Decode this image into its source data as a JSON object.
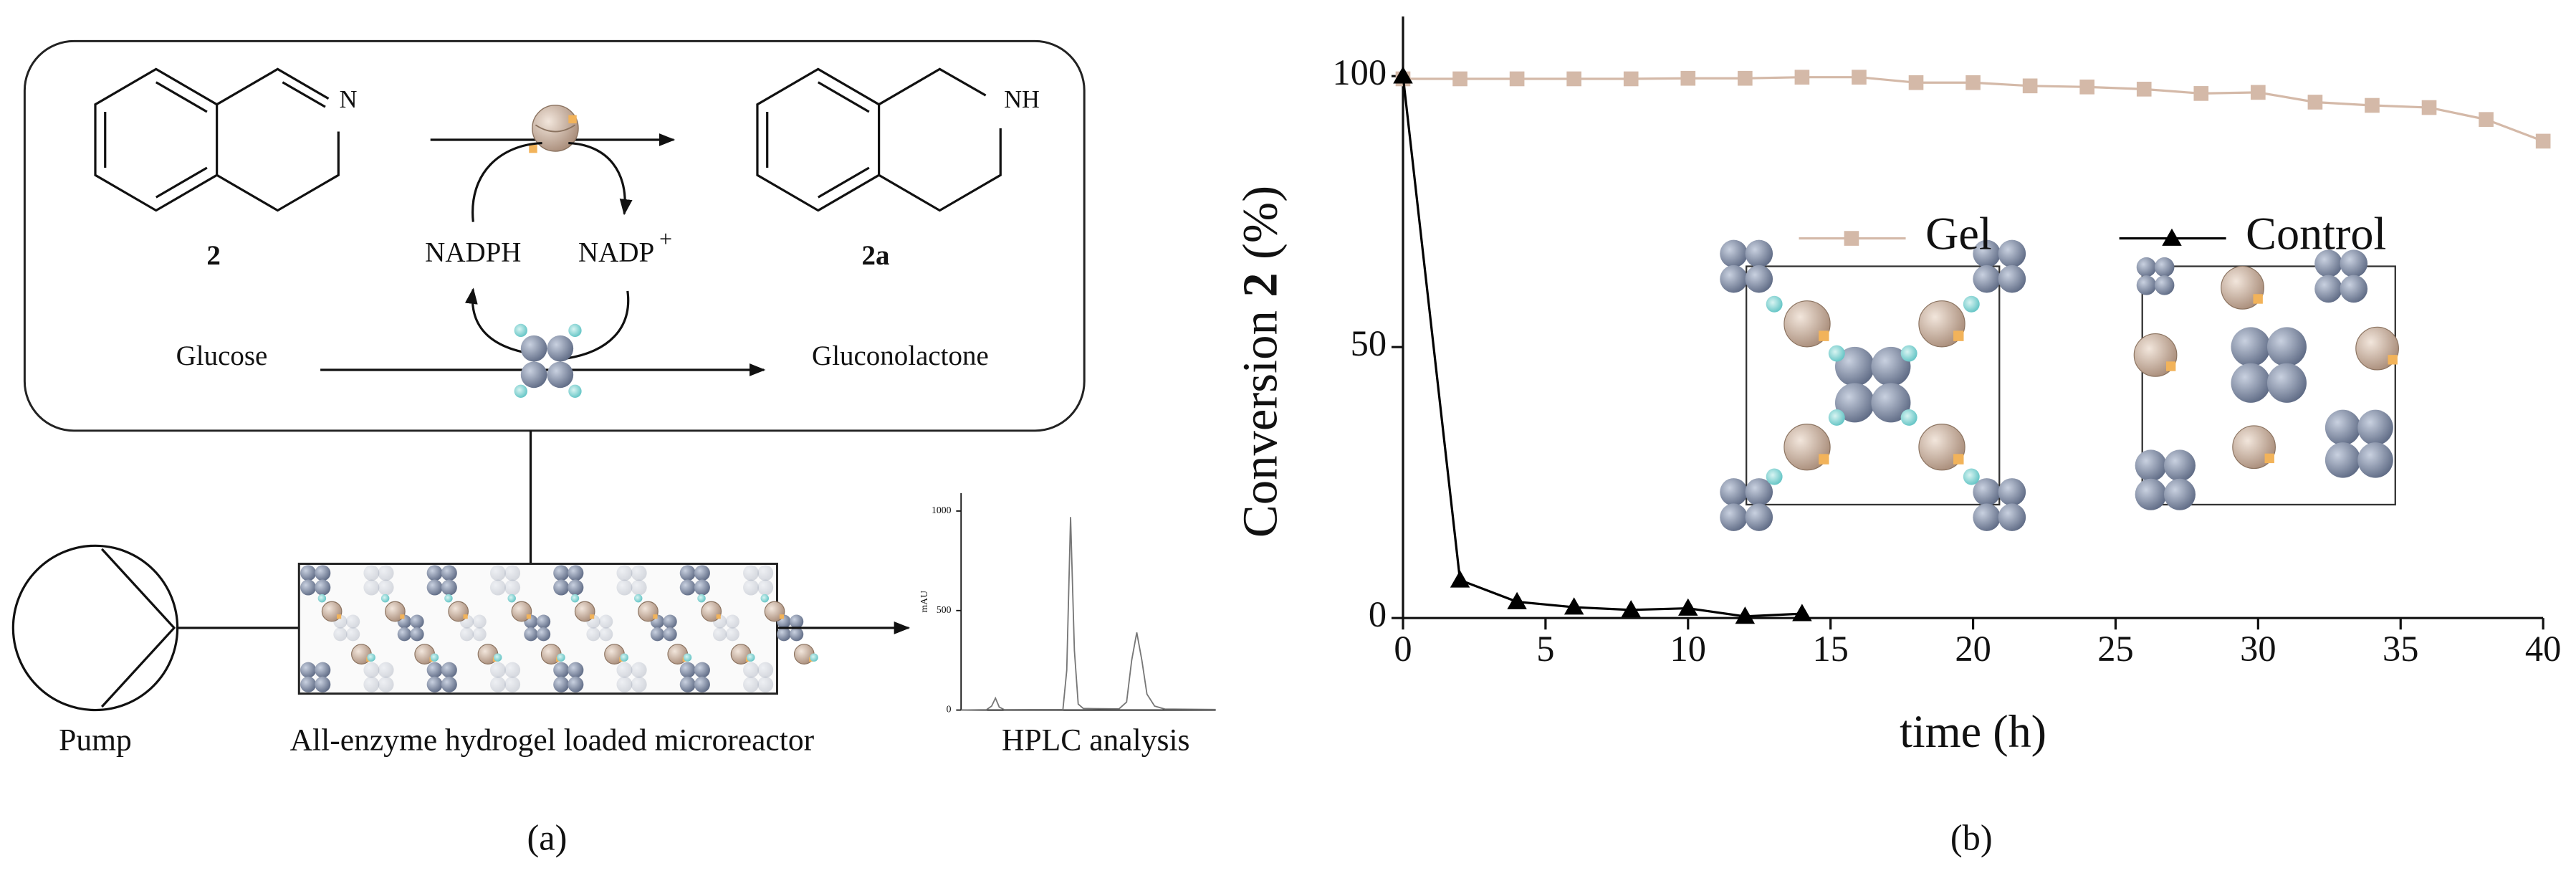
{
  "panel_a": {
    "compound_2": "2",
    "compound_2a": "2a",
    "n_label": "N",
    "nh_label": "NH",
    "cofactor_reduced": "NADPH",
    "cofactor_oxidized": "NADP",
    "cofactor_charge": "+",
    "substrate": "Glucose",
    "product": "Gluconolactone",
    "pump": "Pump",
    "reactor": "All-enzyme hydrogel loaded microreactor",
    "analysis": "HPLC analysis",
    "caption": "(a)"
  },
  "chart_data": [
    {
      "type": "line",
      "ylabel": "mAU",
      "xlim": [
        0,
        100
      ],
      "ylim": [
        0,
        1090
      ],
      "yticks": [
        0,
        500,
        1000
      ],
      "series": [
        {
          "color": "#777777",
          "x": [
            0,
            10,
            12,
            13.5,
            15,
            17,
            40,
            41.5,
            43,
            44.5,
            46,
            48,
            62,
            65,
            67,
            69,
            71,
            73,
            76,
            80,
            100
          ],
          "values": [
            0,
            2,
            20,
            60,
            15,
            2,
            3,
            200,
            970,
            300,
            30,
            8,
            6,
            40,
            250,
            390,
            250,
            80,
            20,
            5,
            3
          ]
        }
      ]
    },
    {
      "type": "line",
      "xlabel": "time (h)",
      "ylabel": {
        "text": "Conversion",
        "compound": "2",
        "unit": "(%)"
      },
      "xlim": [
        0,
        40
      ],
      "ylim": [
        0,
        111
      ],
      "xticks": [
        0,
        5,
        10,
        15,
        20,
        25,
        30,
        35,
        40
      ],
      "yticks": [
        0,
        50,
        100
      ],
      "legend": "upper center",
      "caption": "(b)",
      "series": [
        {
          "name": "Gel",
          "color": "#d4b9a8",
          "marker": "square",
          "x": [
            0,
            2,
            4,
            6,
            8,
            10,
            12,
            14,
            16,
            18,
            20,
            22,
            24,
            26,
            28,
            30,
            32,
            34,
            36,
            38,
            40
          ],
          "values": [
            99.5,
            99.5,
            99.5,
            99.5,
            99.5,
            99.6,
            99.6,
            99.8,
            99.8,
            98.8,
            98.8,
            98.2,
            98.0,
            97.6,
            96.8,
            97.0,
            95.2,
            94.6,
            94.2,
            92.0,
            88.0
          ]
        },
        {
          "name": "Control",
          "color": "#000000",
          "marker": "triangle",
          "x": [
            0,
            2,
            4,
            6,
            8,
            10,
            12,
            14
          ],
          "values": [
            100,
            7,
            3,
            2,
            1.5,
            1.8,
            0.3,
            0.8
          ]
        }
      ]
    }
  ]
}
